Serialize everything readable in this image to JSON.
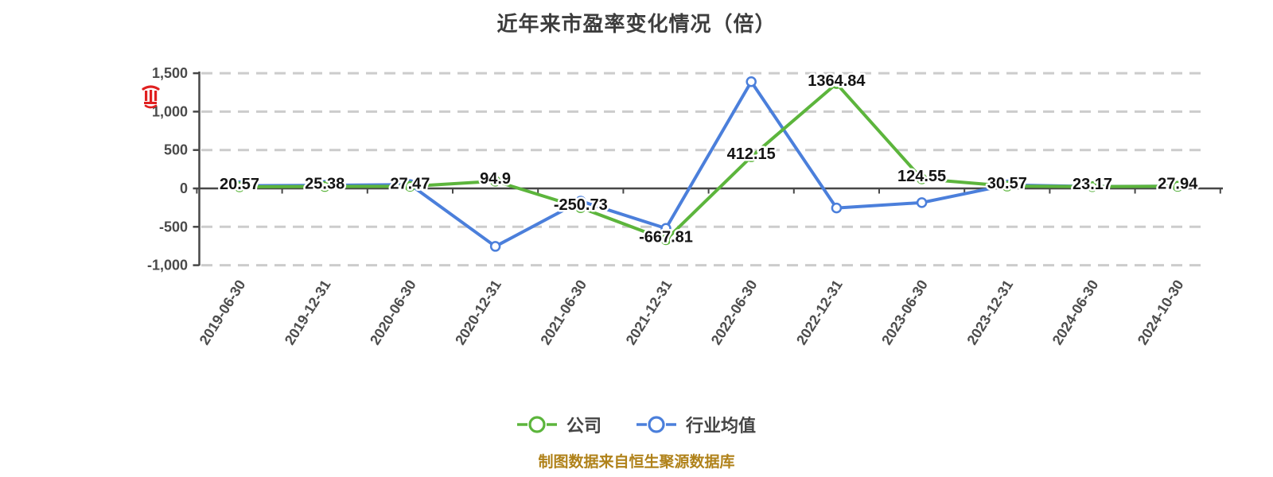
{
  "title": "近年来市盈率变化情况（倍）",
  "footer": {
    "source_note": "制图数据来自恒生聚源数据库",
    "color": "#b0821a"
  },
  "legend": {
    "items": [
      {
        "label": "公司",
        "color": "#5cb53c"
      },
      {
        "label": "行业均值",
        "color": "#4b7fdb"
      }
    ]
  },
  "icons": {
    "red_seal": "red-seal-icon"
  },
  "chart_data": {
    "type": "line",
    "title": "近年来市盈率变化情况（倍）",
    "categories": [
      "2019-06-30",
      "2019-12-31",
      "2020-06-30",
      "2020-12-31",
      "2021-06-30",
      "2021-12-31",
      "2022-06-30",
      "2022-12-31",
      "2023-06-30",
      "2023-12-31",
      "2024-06-30",
      "2024-10-30"
    ],
    "series": [
      {
        "name": "公司",
        "color": "#5cb53c",
        "values": [
          20.57,
          25.38,
          27.47,
          94.9,
          -250.73,
          -667.81,
          412.15,
          1364.84,
          124.55,
          30.57,
          23.17,
          27.94
        ],
        "point_labels": [
          "20.57",
          "25.38",
          "27.47",
          "94.9",
          "-250.73",
          "-667.81",
          "412.15",
          "1364.84",
          "124.55",
          "30.57",
          "23.17",
          "27.94"
        ],
        "labels_visible": true
      },
      {
        "name": "行业均值",
        "color": "#4b7fdb",
        "values": [
          35,
          40,
          50,
          -755,
          -165,
          -520,
          1390,
          -255,
          -185,
          45,
          25,
          28
        ],
        "labels_visible": false,
        "estimated": true
      }
    ],
    "y_axis": {
      "ticks": [
        1500,
        1000,
        500,
        0,
        -500,
        -1000
      ],
      "tick_labels": [
        "1,500",
        "1,000",
        "500",
        "0",
        "-500",
        "-1,000"
      ],
      "range": [
        -1000,
        1500
      ]
    },
    "x_axis": {
      "label_rotation_deg": -58
    },
    "legend_position": "bottom",
    "grid": {
      "dashed": true,
      "color": "#cccccc"
    },
    "marker_style": "white-filled circle with colored ring"
  }
}
